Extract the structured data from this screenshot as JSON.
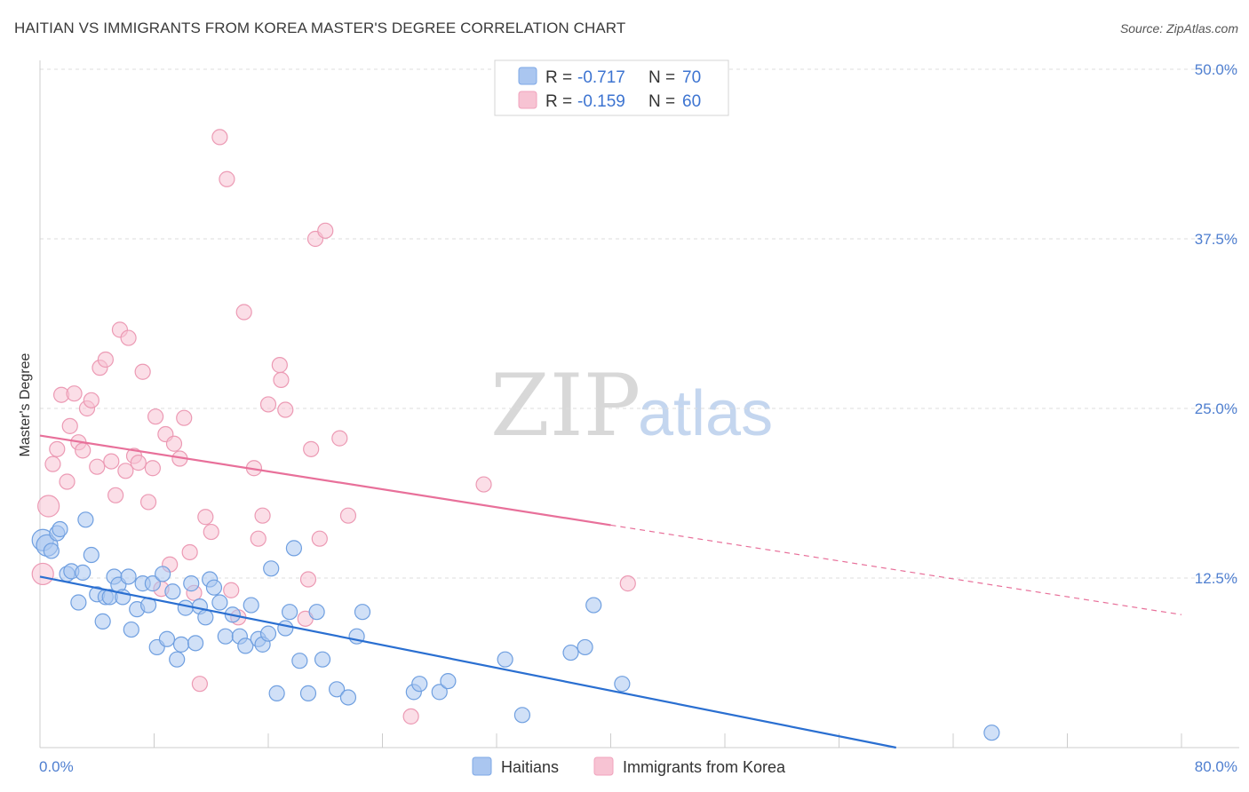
{
  "header": {
    "title": "HAITIAN VS IMMIGRANTS FROM KOREA MASTER'S DEGREE CORRELATION CHART",
    "source": "Source: ZipAtlas.com"
  },
  "watermark": {
    "zip": "ZIP",
    "atlas": "atlas"
  },
  "legend_top": {
    "r_label": "R = ",
    "n_label": "N = ",
    "rows": [
      {
        "r": "-0.717",
        "n": "70",
        "color": "#7ea8e6"
      },
      {
        "r": "-0.159",
        "n": "60",
        "color": "#f0a3bd"
      }
    ]
  },
  "colors": {
    "blue_fill": "#aac6f0",
    "blue_stroke": "#6f9fe0",
    "blue_line": "#2a6fd1",
    "pink_fill": "#f7c3d3",
    "pink_stroke": "#ec9ab4",
    "pink_line": "#e8709a"
  },
  "chart_data": {
    "type": "scatter",
    "title": "HAITIAN VS IMMIGRANTS FROM KOREA MASTER'S DEGREE CORRELATION CHART",
    "xlabel": "",
    "ylabel": "Master's Degree",
    "xlim": [
      0,
      80
    ],
    "ylim": [
      0,
      50
    ],
    "x_tick_labels": [
      "0.0%",
      "80.0%"
    ],
    "y_ticks": [
      12.5,
      25.0,
      37.5,
      50.0
    ],
    "y_tick_labels": [
      "12.5%",
      "25.0%",
      "37.5%",
      "50.0%"
    ],
    "grid": "horizontal dashed",
    "legend_placement": "top-center",
    "series": [
      {
        "name": "Haitians",
        "color": "#aac6f0",
        "trend": {
          "x": [
            0,
            60
          ],
          "y": [
            12.6,
            0
          ]
        },
        "points": [
          [
            0.2,
            15.3
          ],
          [
            0.5,
            14.9
          ],
          [
            0.8,
            14.5
          ],
          [
            1.2,
            15.8
          ],
          [
            1.4,
            16.1
          ],
          [
            1.9,
            12.8
          ],
          [
            2.2,
            13.0
          ],
          [
            2.7,
            10.7
          ],
          [
            3.0,
            12.9
          ],
          [
            3.2,
            16.8
          ],
          [
            3.6,
            14.2
          ],
          [
            4.0,
            11.3
          ],
          [
            4.4,
            9.3
          ],
          [
            4.6,
            11.1
          ],
          [
            4.9,
            11.1
          ],
          [
            5.2,
            12.6
          ],
          [
            5.5,
            12.0
          ],
          [
            5.8,
            11.1
          ],
          [
            6.2,
            12.6
          ],
          [
            6.4,
            8.7
          ],
          [
            6.8,
            10.2
          ],
          [
            7.2,
            12.1
          ],
          [
            7.6,
            10.5
          ],
          [
            7.9,
            12.1
          ],
          [
            8.2,
            7.4
          ],
          [
            8.6,
            12.8
          ],
          [
            8.9,
            8.0
          ],
          [
            9.3,
            11.5
          ],
          [
            9.6,
            6.5
          ],
          [
            9.9,
            7.6
          ],
          [
            10.2,
            10.3
          ],
          [
            10.6,
            12.1
          ],
          [
            10.9,
            7.7
          ],
          [
            11.2,
            10.4
          ],
          [
            11.6,
            9.6
          ],
          [
            11.9,
            12.4
          ],
          [
            12.2,
            11.8
          ],
          [
            12.6,
            10.7
          ],
          [
            13.0,
            8.2
          ],
          [
            13.5,
            9.8
          ],
          [
            14.0,
            8.2
          ],
          [
            14.4,
            7.5
          ],
          [
            14.8,
            10.5
          ],
          [
            15.3,
            8.0
          ],
          [
            15.6,
            7.6
          ],
          [
            16.0,
            8.4
          ],
          [
            16.2,
            13.2
          ],
          [
            16.6,
            4.0
          ],
          [
            17.2,
            8.8
          ],
          [
            17.5,
            10.0
          ],
          [
            17.8,
            14.7
          ],
          [
            18.2,
            6.4
          ],
          [
            18.8,
            4.0
          ],
          [
            19.4,
            10.0
          ],
          [
            19.8,
            6.5
          ],
          [
            20.8,
            4.3
          ],
          [
            21.6,
            3.7
          ],
          [
            22.2,
            8.2
          ],
          [
            22.6,
            10.0
          ],
          [
            26.2,
            4.1
          ],
          [
            26.6,
            4.7
          ],
          [
            28.0,
            4.1
          ],
          [
            28.6,
            4.9
          ],
          [
            32.6,
            6.5
          ],
          [
            33.8,
            2.4
          ],
          [
            37.2,
            7.0
          ],
          [
            38.2,
            7.4
          ],
          [
            38.8,
            10.5
          ],
          [
            40.8,
            4.7
          ],
          [
            66.7,
            1.1
          ]
        ]
      },
      {
        "name": "Immigrants from Korea",
        "color": "#f7c3d3",
        "trend": {
          "x": [
            0,
            40
          ],
          "y": [
            23.0,
            16.4
          ]
        },
        "trend_ext": {
          "x": [
            40,
            80
          ],
          "y": [
            16.4,
            9.8
          ]
        },
        "points": [
          [
            0.2,
            12.8
          ],
          [
            0.6,
            17.8
          ],
          [
            0.9,
            20.9
          ],
          [
            1.2,
            22.0
          ],
          [
            1.5,
            26.0
          ],
          [
            1.9,
            19.6
          ],
          [
            2.1,
            23.7
          ],
          [
            2.4,
            26.1
          ],
          [
            2.7,
            22.5
          ],
          [
            3.0,
            21.9
          ],
          [
            3.3,
            25.0
          ],
          [
            3.6,
            25.6
          ],
          [
            4.0,
            20.7
          ],
          [
            4.2,
            28.0
          ],
          [
            4.6,
            28.6
          ],
          [
            5.0,
            21.1
          ],
          [
            5.3,
            18.6
          ],
          [
            5.6,
            30.8
          ],
          [
            6.0,
            20.4
          ],
          [
            6.2,
            30.2
          ],
          [
            6.6,
            21.5
          ],
          [
            6.9,
            21.0
          ],
          [
            7.2,
            27.7
          ],
          [
            7.6,
            18.1
          ],
          [
            7.9,
            20.6
          ],
          [
            8.1,
            24.4
          ],
          [
            8.5,
            11.7
          ],
          [
            8.8,
            23.1
          ],
          [
            9.1,
            13.5
          ],
          [
            9.4,
            22.4
          ],
          [
            9.8,
            21.3
          ],
          [
            10.1,
            24.3
          ],
          [
            10.5,
            14.4
          ],
          [
            10.8,
            11.4
          ],
          [
            11.2,
            4.7
          ],
          [
            11.6,
            17.0
          ],
          [
            12.0,
            15.9
          ],
          [
            12.6,
            45.0
          ],
          [
            13.1,
            41.9
          ],
          [
            13.4,
            11.6
          ],
          [
            13.9,
            9.6
          ],
          [
            14.3,
            32.1
          ],
          [
            15.0,
            20.6
          ],
          [
            15.3,
            15.4
          ],
          [
            15.6,
            17.1
          ],
          [
            16.0,
            25.3
          ],
          [
            16.8,
            28.2
          ],
          [
            16.9,
            27.1
          ],
          [
            17.2,
            24.9
          ],
          [
            18.6,
            9.5
          ],
          [
            18.8,
            12.4
          ],
          [
            19.0,
            22.0
          ],
          [
            19.3,
            37.5
          ],
          [
            19.6,
            15.4
          ],
          [
            20.0,
            38.1
          ],
          [
            21.0,
            22.8
          ],
          [
            21.6,
            17.1
          ],
          [
            26.0,
            2.3
          ],
          [
            31.1,
            19.4
          ],
          [
            41.2,
            12.1
          ]
        ]
      }
    ]
  },
  "bottom_legend": [
    {
      "label": "Haitians"
    },
    {
      "label": "Immigrants from Korea"
    }
  ]
}
